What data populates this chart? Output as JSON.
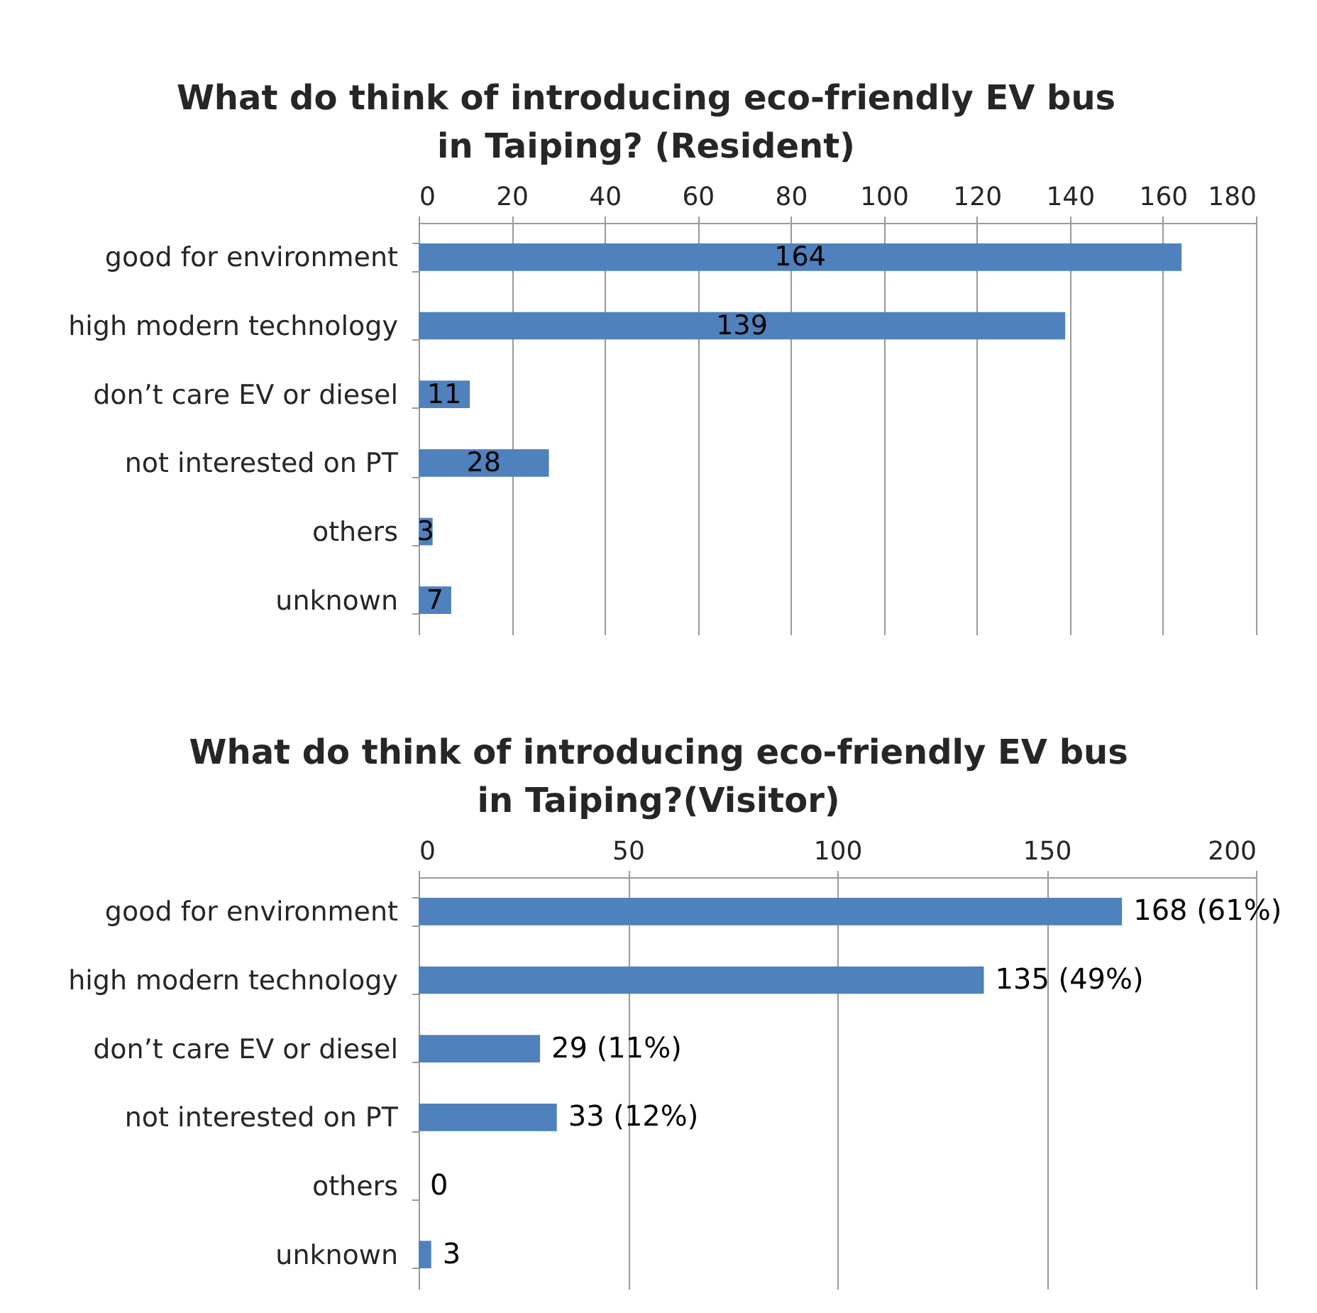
{
  "chart_data": [
    {
      "type": "bar",
      "orientation": "horizontal",
      "title": "What do think of introducing eco-friendly EV bus\nin Taiping? (Resident)",
      "categories": [
        "good for environment",
        "high modern technology",
        "don’t care EV or diesel",
        "not interested on PT",
        "others",
        "unknown"
      ],
      "values": [
        164,
        139,
        11,
        28,
        3,
        7
      ],
      "color": "#4f81bd",
      "xlim": [
        0,
        180
      ],
      "xticks": [
        0,
        20,
        40,
        60,
        80,
        100,
        120,
        140,
        160,
        180
      ],
      "grid": "x",
      "data_labels": true
    },
    {
      "type": "bar",
      "orientation": "horizontal",
      "title": "What do think of introducing eco-friendly EV bus\nin Taiping?(Visitor)",
      "categories": [
        "good for environment",
        "high modern technology",
        "don’t care EV or diesel",
        "not interested on PT",
        "others",
        "unknown"
      ],
      "values": [
        168,
        135,
        29,
        33,
        0,
        3
      ],
      "value_labels": [
        "168 (61%)",
        "135 (49%)",
        "29 (11%)",
        "33 (12%)",
        "0",
        "3"
      ],
      "color": "#4f81bd",
      "xlim": [
        0,
        200
      ],
      "xticks": [
        0,
        50,
        100,
        150,
        200
      ],
      "grid": "x"
    }
  ]
}
